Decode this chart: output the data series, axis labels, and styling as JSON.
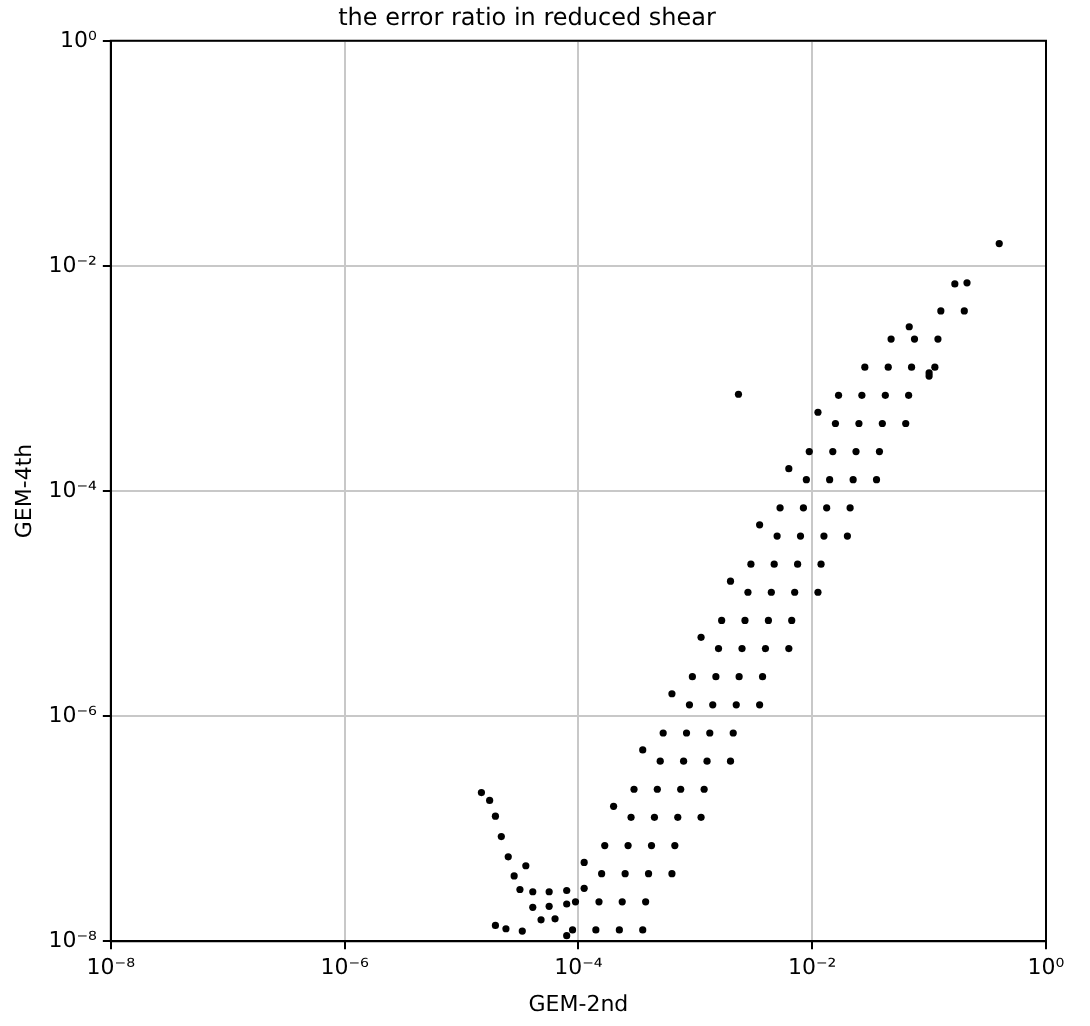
{
  "chart_data": {
    "type": "scatter",
    "title": "the error ratio in reduced shear",
    "xlabel": "GEM-2nd",
    "ylabel": "GEM-4th",
    "log": "xy",
    "grid": true,
    "legend": false,
    "marker": "circle",
    "xlim": [
      1e-08,
      1
    ],
    "ylim": [
      1e-08,
      1
    ],
    "xticks": [
      {
        "value": 1e-08,
        "label": "10⁻⁸"
      },
      {
        "value": 1e-06,
        "label": "10⁻⁶"
      },
      {
        "value": 0.0001,
        "label": "10⁻⁴"
      },
      {
        "value": 0.01,
        "label": "10⁻²"
      },
      {
        "value": 1,
        "label": "10⁰"
      }
    ],
    "yticks": [
      {
        "value": 1e-08,
        "label": "10⁻⁸"
      },
      {
        "value": 1e-06,
        "label": "10⁻⁶"
      },
      {
        "value": 0.0001,
        "label": "10⁻⁴"
      },
      {
        "value": 0.01,
        "label": "10⁻²"
      },
      {
        "value": 1,
        "label": "10⁰"
      }
    ],
    "series": [
      {
        "color": "#000000",
        "x": [
          6.31e-05,
          0.000112,
          0.0002,
          0.000355,
          0.000631,
          0.00112,
          0.002,
          0.00355,
          0.00631,
          0.0112,
          8.91e-05,
          0.000158,
          0.000282,
          0.000501,
          0.000891,
          0.00158,
          0.00282,
          0.00501,
          0.00891,
          0.0158,
          0.0282,
          0.000141,
          0.000251,
          0.000447,
          0.000794,
          0.00141,
          0.00251,
          0.00447,
          0.00794,
          0.0141,
          0.0251,
          0.0447,
          0.0676,
          0.000224,
          0.000398,
          0.000708,
          0.00126,
          0.00224,
          0.00398,
          0.00708,
          0.0126,
          0.0224,
          0.0398,
          0.0708,
          0.126,
          0.166,
          0.000355,
          0.000631,
          0.00112,
          0.002,
          0.00355,
          0.00631,
          0.0112,
          0.02,
          0.0355,
          0.0631,
          0.112,
          0.2,
          0.398,
          9.44e-05,
          0.000168,
          0.000299,
          0.000531,
          0.000944,
          0.00168,
          0.00299,
          0.00531,
          0.00944,
          0.0168,
          0.00015,
          0.000266,
          0.000473,
          0.000841,
          0.0015,
          0.00266,
          0.00473,
          0.00841,
          0.015,
          0.0266,
          0.0473,
          0.000237,
          0.000422,
          0.00075,
          0.00133,
          0.00237,
          0.00422,
          0.0075,
          0.0133,
          0.0237,
          0.0422,
          0.075,
          0.000376,
          0.000668,
          0.00119,
          0.00211,
          0.00376,
          0.00668,
          0.0119,
          0.0211,
          0.0376,
          0.0668,
          0.119,
          0.211,
          1.48e-05,
          1.74e-05,
          1.95e-05,
          2.19e-05,
          2.51e-05,
          2.82e-05,
          3.16e-05,
          4.07e-05,
          5.62e-05,
          7.94e-05,
          0.000112,
          4.07e-05,
          5.62e-05,
          7.94e-05,
          1.95e-05,
          2.4e-05,
          3.31e-05,
          4.79e-05,
          7.94e-05,
          3.55e-05,
          0.00234,
          0.1,
          0.1
        ],
        "values": [
          1.58e-08,
          5.01e-08,
          1.58e-07,
          5.01e-07,
          1.58e-06,
          5.01e-06,
          1.58e-05,
          5.01e-05,
          0.000158,
          0.000501,
          1.26e-08,
          3.98e-08,
          1.26e-07,
          3.98e-07,
          1.26e-06,
          3.98e-06,
          1.26e-05,
          3.98e-05,
          0.000126,
          0.000398,
          0.00126,
          1.26e-08,
          3.98e-08,
          1.26e-07,
          3.98e-07,
          1.26e-06,
          3.98e-06,
          1.26e-05,
          3.98e-05,
          0.000126,
          0.000398,
          0.00126,
          0.00288,
          1.26e-08,
          3.98e-08,
          1.26e-07,
          3.98e-07,
          1.26e-06,
          3.98e-06,
          1.26e-05,
          3.98e-05,
          0.000126,
          0.000398,
          0.00126,
          0.00398,
          0.00692,
          1.26e-08,
          3.98e-08,
          1.26e-07,
          3.98e-07,
          1.26e-06,
          3.98e-06,
          1.26e-05,
          3.98e-05,
          0.000126,
          0.000398,
          0.00126,
          0.00398,
          0.0158,
          2.24e-08,
          7.08e-08,
          2.24e-07,
          7.08e-07,
          2.24e-06,
          7.08e-06,
          2.24e-05,
          7.08e-05,
          0.000224,
          0.000708,
          2.24e-08,
          7.08e-08,
          2.24e-07,
          7.08e-07,
          2.24e-06,
          7.08e-06,
          2.24e-05,
          7.08e-05,
          0.000224,
          0.000708,
          0.00224,
          2.24e-08,
          7.08e-08,
          2.24e-07,
          7.08e-07,
          2.24e-06,
          7.08e-06,
          2.24e-05,
          7.08e-05,
          0.000224,
          0.000708,
          0.00224,
          2.24e-08,
          7.08e-08,
          2.24e-07,
          7.08e-07,
          2.24e-06,
          7.08e-06,
          2.24e-05,
          7.08e-05,
          0.000224,
          0.000708,
          0.00224,
          0.00708,
          2.09e-07,
          1.78e-07,
          1.29e-07,
          8.51e-08,
          5.62e-08,
          3.8e-08,
          2.88e-08,
          2.75e-08,
          2.75e-08,
          2.82e-08,
          2.95e-08,
          2e-08,
          2.04e-08,
          2.14e-08,
          1.38e-08,
          1.29e-08,
          1.23e-08,
          1.55e-08,
          1.12e-08,
          4.68e-08,
          0.000724,
          0.00105,
          0.00112
        ]
      }
    ]
  }
}
